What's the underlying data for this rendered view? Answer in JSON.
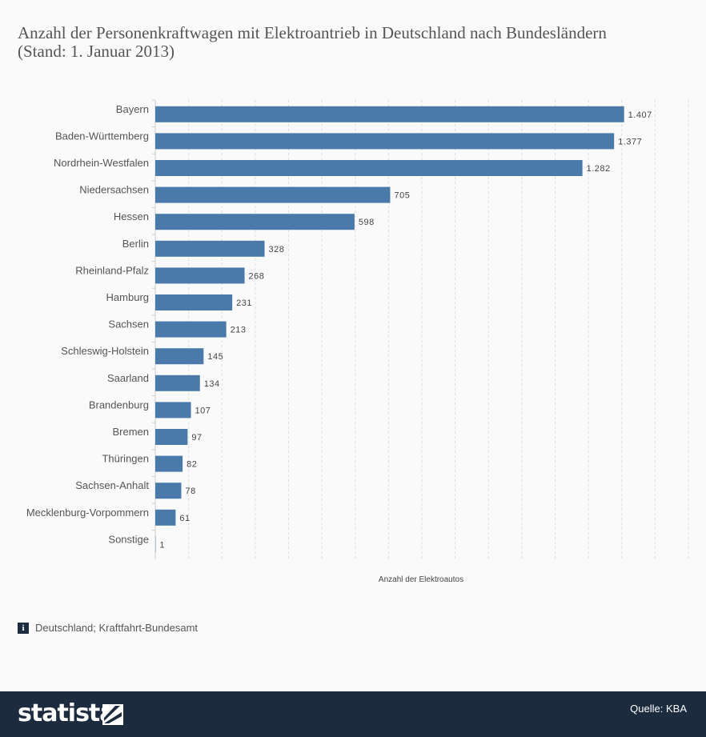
{
  "chart_data": {
    "type": "bar",
    "orientation": "horizontal",
    "title": "Anzahl der Personenkraftwagen mit Elektroantrieb in Deutschland nach Bundesländern (Stand: 1. Januar 2013)",
    "xlabel": "Anzahl der Elektroautos",
    "categories": [
      "Bayern",
      "Baden-Württemberg",
      "Nordrhein-Westfalen",
      "Niedersachsen",
      "Hessen",
      "Berlin",
      "Rheinland-Pfalz",
      "Hamburg",
      "Sachsen",
      "Schleswig-Holstein",
      "Saarland",
      "Brandenburg",
      "Bremen",
      "Thüringen",
      "Sachsen-Anhalt",
      "Mecklenburg-Vorpommern",
      "Sonstige"
    ],
    "values": [
      1407,
      1377,
      1282,
      705,
      598,
      328,
      268,
      231,
      213,
      145,
      134,
      107,
      97,
      82,
      78,
      61,
      1
    ],
    "value_labels": [
      "1.407",
      "1.377",
      "1.282",
      "705",
      "598",
      "328",
      "268",
      "231",
      "213",
      "145",
      "134",
      "107",
      "97",
      "82",
      "78",
      "61",
      "1"
    ],
    "xlim": [
      0,
      1600
    ],
    "grid": true,
    "bar_color": "#4a7aaa"
  },
  "source_note": "Deutschland; Kraftfahrt-Bundesamt",
  "footer": {
    "brand": "statista",
    "source_credit": "Quelle: KBA"
  },
  "colors": {
    "footer_bg": "#1c2b3e",
    "bar": "#4a7aaa"
  }
}
